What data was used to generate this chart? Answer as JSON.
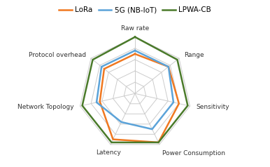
{
  "categories": [
    "Raw rate",
    "Range",
    "Sensitivity",
    "Power Consumption",
    "Latency",
    "Network Topology",
    "Protocol overhead"
  ],
  "series": [
    {
      "label": "LoRa",
      "color": "#F07820",
      "values": [
        3.5,
        3.8,
        4.0,
        4.8,
        4.5,
        3.2,
        3.5
      ]
    },
    {
      "label": "5G (NB-IoT)",
      "color": "#5BA3D9",
      "values": [
        3.8,
        3.8,
        3.5,
        3.5,
        2.8,
        3.5,
        3.8
      ]
    },
    {
      "label": "LPWA-CB",
      "color": "#4A7A2A",
      "values": [
        5.0,
        4.8,
        4.8,
        4.8,
        4.8,
        4.8,
        4.8
      ]
    }
  ],
  "n_gridlines": 5,
  "max_val": 5,
  "background_color": "#ffffff",
  "gridline_color": "#cccccc",
  "label_fontsize": 6.5,
  "legend_fontsize": 7.5,
  "linewidth": 1.8
}
